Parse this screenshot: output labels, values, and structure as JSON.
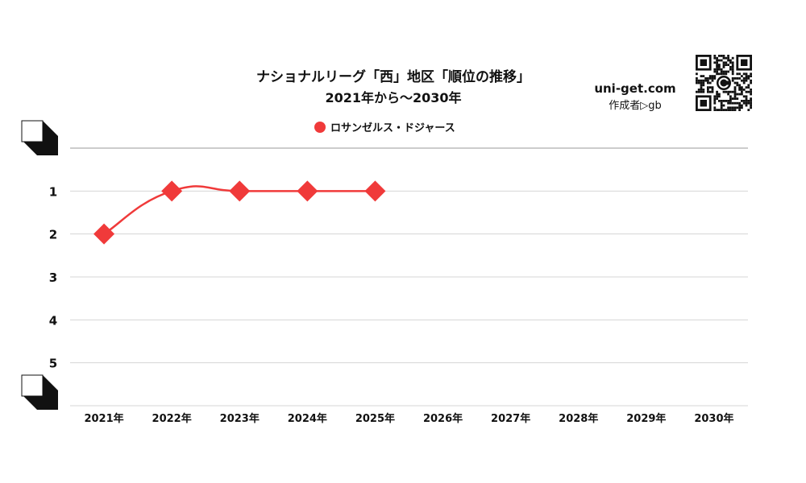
{
  "chart_data": {
    "type": "line",
    "title": "ナショナルリーグ「西」地区「順位の推移」",
    "subtitle": "2021年から～2030年",
    "categories": [
      "2021年",
      "2022年",
      "2023年",
      "2024年",
      "2025年",
      "2026年",
      "2027年",
      "2028年",
      "2029年",
      "2030年"
    ],
    "y_ticks": [
      "1",
      "2",
      "3",
      "4",
      "5"
    ],
    "ylim": [
      0,
      6
    ],
    "y_inverted": true,
    "grid": true,
    "legend_position": "top-center",
    "series": [
      {
        "name": "ロサンゼルス・ドジャース",
        "color": "#f03a3a",
        "values": [
          2,
          1,
          1,
          1,
          1,
          null,
          null,
          null,
          null,
          null
        ]
      }
    ]
  },
  "branding": {
    "site": "uni-get.com",
    "author": "作成者▷gb",
    "qr_icon": "qr-code-icon",
    "corner_icon": "corner-block-icon"
  }
}
